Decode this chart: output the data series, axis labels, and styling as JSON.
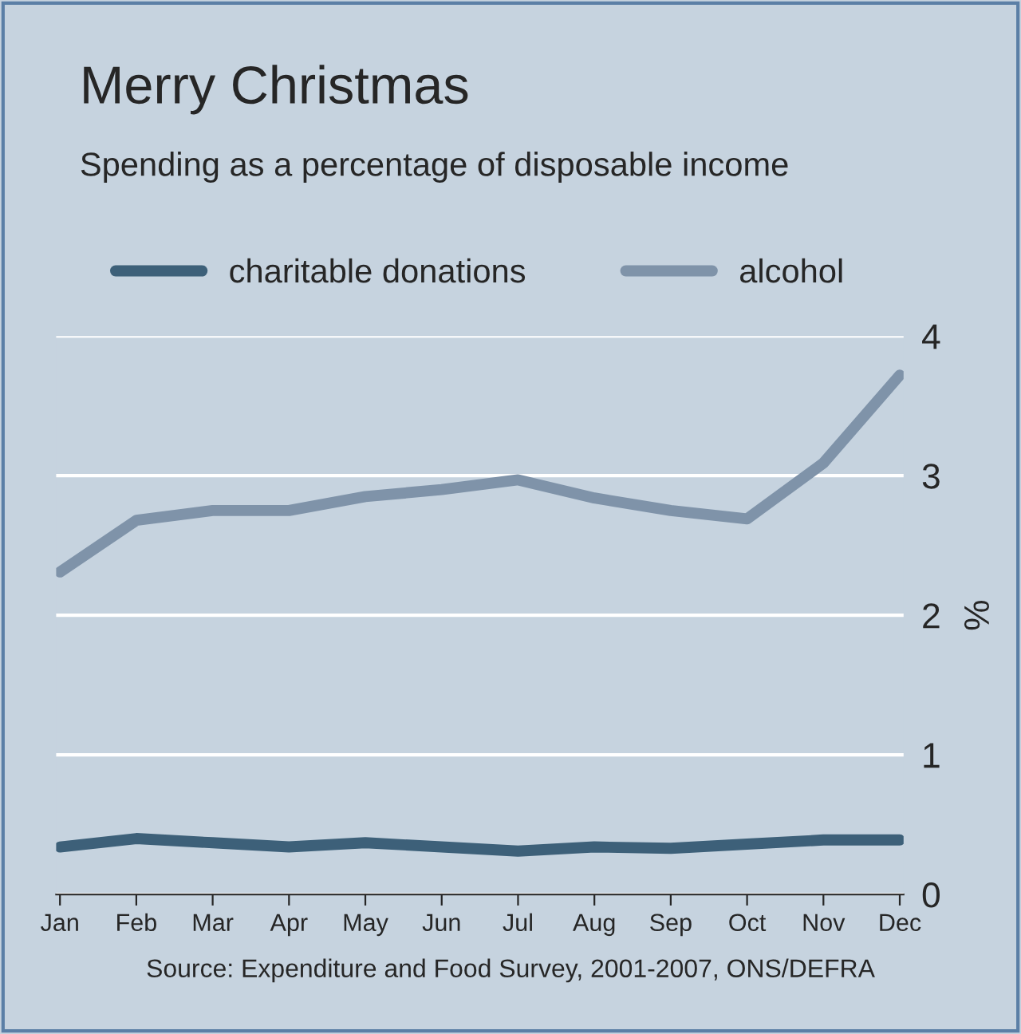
{
  "chart_data": {
    "type": "line",
    "title": "Merry Christmas",
    "subtitle": "Spending as a percentage of disposable income",
    "ylabel": "%",
    "categories": [
      "Jan",
      "Feb",
      "Mar",
      "Apr",
      "May",
      "Jun",
      "Jul",
      "Aug",
      "Sep",
      "Oct",
      "Nov",
      "Dec"
    ],
    "series": [
      {
        "name": "charitable donations",
        "color": "#3d6079",
        "values": [
          0.34,
          0.4,
          0.37,
          0.34,
          0.37,
          0.34,
          0.31,
          0.34,
          0.33,
          0.36,
          0.39,
          0.39
        ]
      },
      {
        "name": "alcohol",
        "color": "#7f93a9",
        "values": [
          2.31,
          2.68,
          2.75,
          2.75,
          2.85,
          2.9,
          2.97,
          2.84,
          2.75,
          2.69,
          3.09,
          3.72
        ]
      }
    ],
    "ylim": [
      0,
      4
    ],
    "yticks": [
      0,
      1,
      2,
      3,
      4
    ],
    "grid": "y",
    "legend": "top",
    "marker": "none",
    "line_style": "solid",
    "annotations": [
      "Source: Expenditure and Food Survey, 2001-2007, ONS/DEFRA"
    ]
  }
}
